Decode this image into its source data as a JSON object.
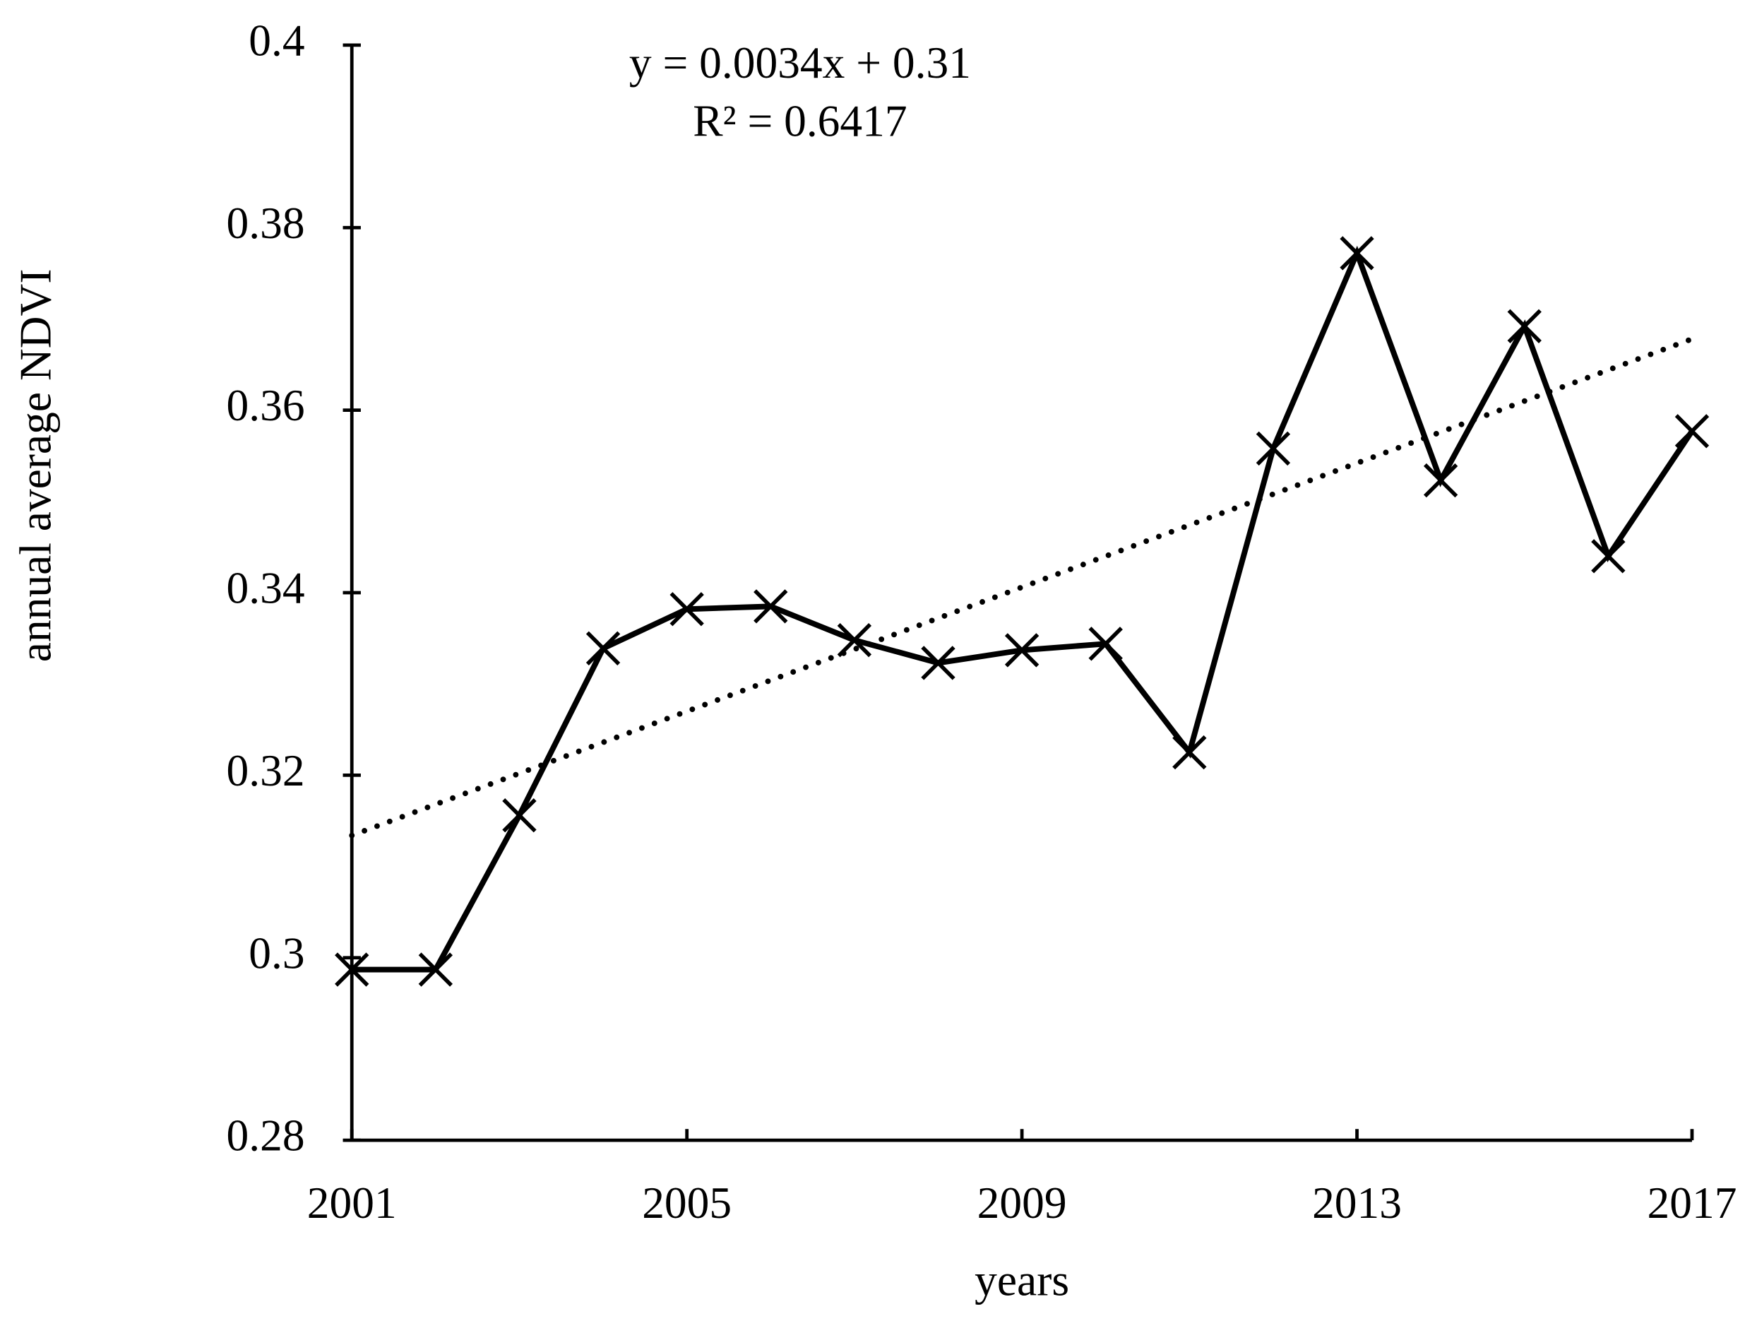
{
  "chart_data": {
    "type": "line",
    "x": [
      2001,
      2002,
      2003,
      2004,
      2005,
      2006,
      2007,
      2008,
      2009,
      2010,
      2011,
      2012,
      2013,
      2014,
      2015,
      2016,
      2017
    ],
    "series": [
      {
        "color": "#000000",
        "marker": "x",
        "line_style": "solid",
        "values": [
          0.2987,
          0.2987,
          0.3156,
          0.3339,
          0.3382,
          0.3385,
          0.3348,
          0.3323,
          0.3337,
          0.3344,
          0.3225,
          0.3558,
          0.3772,
          0.3523,
          0.3692,
          0.344,
          0.3577
        ]
      },
      {
        "color": "#000000",
        "marker": "none",
        "line_style": "dotted",
        "values": [
          0.3134,
          0.3168,
          0.3202,
          0.3236,
          0.327,
          0.3304,
          0.3338,
          0.3372,
          0.3406,
          0.344,
          0.3474,
          0.3508,
          0.3542,
          0.3576,
          0.361,
          0.3644,
          0.3678
        ]
      }
    ],
    "xlim": [
      2001,
      2017
    ],
    "xticks": [
      2001,
      2005,
      2009,
      2013,
      2017
    ],
    "ylim": [
      0.28,
      0.4
    ],
    "yticks": [
      0.28,
      0.3,
      0.32,
      0.34,
      0.36,
      0.38,
      0.4
    ],
    "grid": false,
    "xlabel": "years",
    "ylabel": "annual average NDVI",
    "annotations": [
      "y = 0.0034x + 0.31",
      "R² = 0.6417"
    ]
  }
}
